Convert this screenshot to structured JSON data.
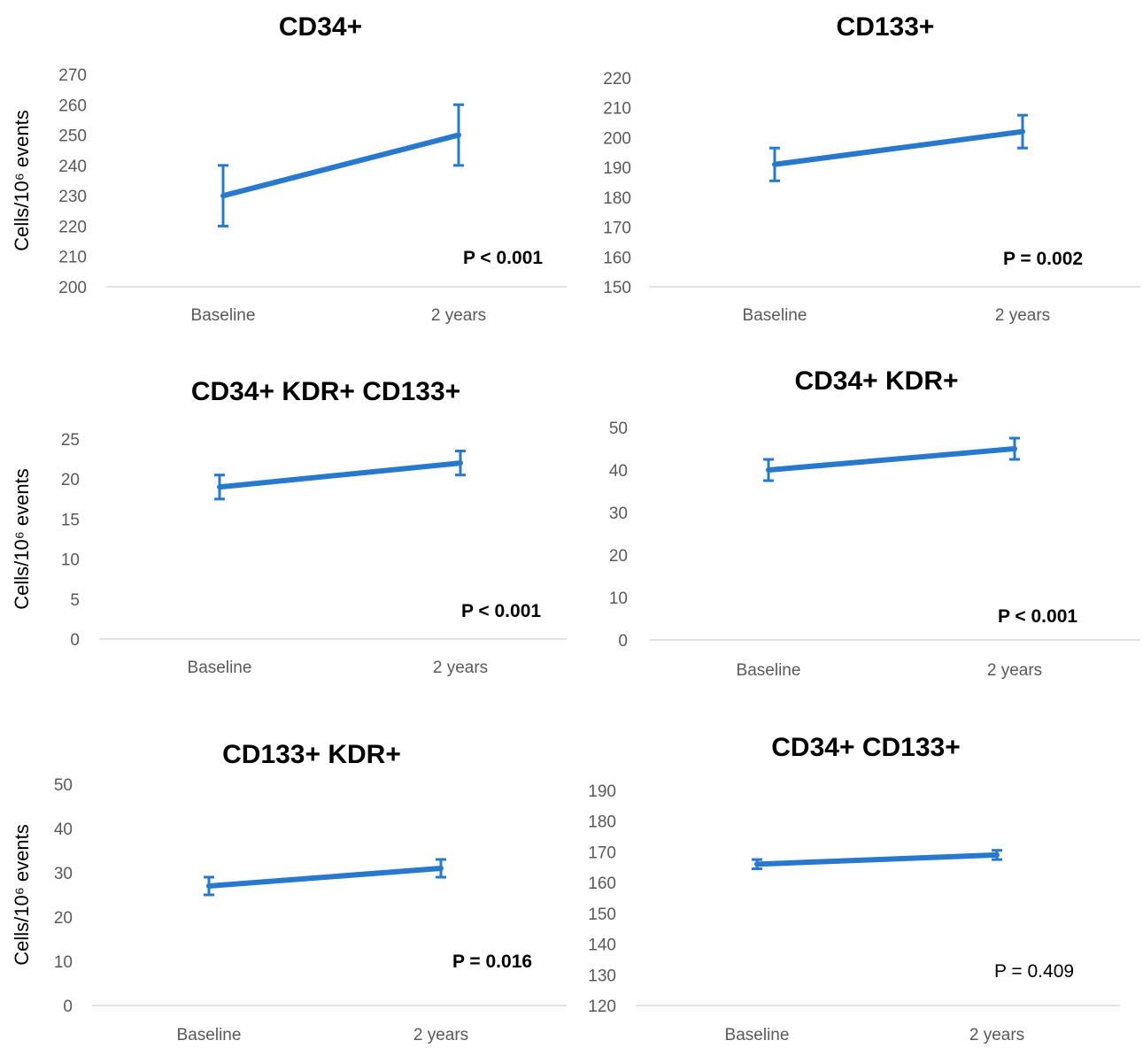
{
  "y_axis_label": "Cells/10⁶ events",
  "chart_data": [
    {
      "type": "line",
      "title": "CD34+",
      "categories": [
        "Baseline",
        "2 years"
      ],
      "values": [
        230,
        250
      ],
      "error": [
        10,
        10
      ],
      "ylim": [
        200,
        270
      ],
      "yticks": [
        "200",
        "210",
        "220",
        "230",
        "240",
        "250",
        "260",
        "270"
      ],
      "ylabel": "Cells/10⁶ events",
      "p_value": "P < 0.001",
      "p_bold": true,
      "color": "#2878cc"
    },
    {
      "type": "line",
      "title": "CD133+",
      "categories": [
        "Baseline",
        "2 years"
      ],
      "values": [
        191,
        202
      ],
      "error": [
        5.5,
        5.5
      ],
      "ylim": [
        150,
        220
      ],
      "yticks": [
        "150",
        "160",
        "170",
        "180",
        "190",
        "200",
        "210",
        "220"
      ],
      "ylabel": "",
      "p_value": "P = 0.002",
      "p_bold": true,
      "color": "#2878cc"
    },
    {
      "type": "line",
      "title": "CD34+ KDR+ CD133+",
      "categories": [
        "Baseline",
        "2 years"
      ],
      "values": [
        19,
        22
      ],
      "error": [
        1.5,
        1.5
      ],
      "ylim": [
        0,
        25
      ],
      "yticks": [
        "0",
        "5",
        "10",
        "15",
        "20",
        "25"
      ],
      "ylabel": "Cells/10⁶ events",
      "p_value": "P < 0.001",
      "p_bold": true,
      "color": "#2878cc"
    },
    {
      "type": "line",
      "title": "CD34+ KDR+",
      "categories": [
        "Baseline",
        "2 years"
      ],
      "values": [
        40,
        45
      ],
      "error": [
        2.5,
        2.5
      ],
      "ylim": [
        0,
        50
      ],
      "yticks": [
        "0",
        "10",
        "20",
        "30",
        "40",
        "50"
      ],
      "ylabel": "",
      "p_value": "P < 0.001",
      "p_bold": true,
      "color": "#2878cc"
    },
    {
      "type": "line",
      "title": "CD133+ KDR+",
      "categories": [
        "Baseline",
        "2 years"
      ],
      "values": [
        27,
        31
      ],
      "error": [
        2,
        2
      ],
      "ylim": [
        0,
        50
      ],
      "yticks": [
        "0",
        "10",
        "20",
        "30",
        "40",
        "50"
      ],
      "ylabel": "Cells/10⁶ events",
      "p_value": "P = 0.016",
      "p_bold": true,
      "color": "#2878cc"
    },
    {
      "type": "line",
      "title": "CD34+  CD133+",
      "categories": [
        "Baseline",
        "2 years"
      ],
      "values": [
        166,
        169
      ],
      "error": [
        1.5,
        1.5
      ],
      "ylim": [
        120,
        190
      ],
      "yticks": [
        "120",
        "130",
        "140",
        "150",
        "160",
        "170",
        "180",
        "190"
      ],
      "ylabel": "",
      "p_value": "P = 0.409",
      "p_bold": false,
      "color": "#2878cc"
    }
  ]
}
